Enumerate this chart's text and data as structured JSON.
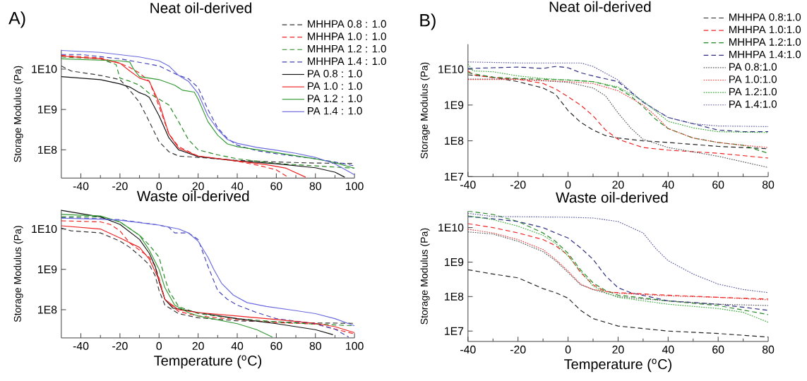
{
  "chart_data": [
    {
      "type": "line",
      "title": "Neat oil-derived",
      "ylabel": "Storage Modulus (Pa)",
      "annotations": [
        "A)"
      ],
      "log": "y",
      "legend": "top right",
      "xlim": [
        -50,
        100
      ],
      "xticks": [
        -40,
        -20,
        0,
        20,
        40,
        60,
        80,
        100
      ],
      "ylim": [
        20000000.0,
        30000000000.0
      ],
      "yticks": [
        {
          "value": 100000000.0,
          "label": "1E8"
        },
        {
          "value": 1000000000.0,
          "label": "1E9"
        },
        {
          "value": 10000000000.0,
          "label": "1E10"
        }
      ],
      "series": [
        {
          "name": "MHHPA 0.8 : 1.0",
          "color": "#333333",
          "line_style": "dashed",
          "x": [
            -50,
            -45,
            -30,
            -20,
            -15,
            -10,
            -5,
            0,
            5,
            10,
            20,
            40,
            60,
            80,
            100
          ],
          "values": [
            12000000000.0,
            9000000000.0,
            7000000000.0,
            5500000000.0,
            3000000000.0,
            1500000000.0,
            500000000.0,
            160000000.0,
            90000000.0,
            70000000.0,
            65000000.0,
            55000000.0,
            50000000.0,
            47000000.0,
            46000000.0
          ]
        },
        {
          "name": "MHHPA 1.0 : 1.0",
          "color": "#ee2222",
          "line_style": "dashed",
          "x": [
            -50,
            -30,
            -20,
            -15,
            -10,
            -5,
            0,
            5,
            10,
            20,
            40,
            50,
            60,
            66
          ],
          "values": [
            22000000000.0,
            19000000000.0,
            14000000000.0,
            11000000000.0,
            8000000000.0,
            5000000000.0,
            1200000000.0,
            250000000.0,
            120000000.0,
            70000000.0,
            52000000.0,
            42000000.0,
            32000000.0,
            21000000.0
          ]
        },
        {
          "name": "MHHPA 1.2 : 1.0",
          "color": "#228822",
          "line_style": "dashed",
          "x": [
            -50,
            -30,
            -22,
            -20,
            -15,
            -10,
            -5,
            5,
            10,
            15,
            20,
            30,
            40,
            60,
            80,
            100
          ],
          "values": [
            20000000000.0,
            18000000000.0,
            13000000000.0,
            6000000000.0,
            5000000000.0,
            4000000000.0,
            2500000000.0,
            1300000000.0,
            500000000.0,
            180000000.0,
            100000000.0,
            75000000.0,
            60000000.0,
            46000000.0,
            40000000.0,
            35000000.0
          ]
        },
        {
          "name": "MHHPA 1.4 : 1.0",
          "color": "#4040b8",
          "line_style": "dashed",
          "x": [
            -50,
            -40,
            -20,
            0,
            10,
            15,
            20,
            25,
            30,
            35,
            40,
            50,
            60,
            80,
            90,
            100
          ],
          "values": [
            23000000000.0,
            23000000000.0,
            18000000000.0,
            12000000000.0,
            7000000000.0,
            5800000000.0,
            3500000000.0,
            1000000000.0,
            350000000.0,
            190000000.0,
            130000000.0,
            95000000.0,
            80000000.0,
            60000000.0,
            50000000.0,
            40000000.0
          ]
        },
        {
          "name": "PA 0.8 : 1.0",
          "color": "#111111",
          "line_style": "solid",
          "x": [
            -50,
            -30,
            -20,
            -15,
            -10,
            -7,
            -5,
            0,
            5,
            10,
            20,
            40,
            60,
            80,
            90,
            95
          ],
          "values": [
            6500000000.0,
            5500000000.0,
            4300000000.0,
            3600000000.0,
            2600000000.0,
            2300000000.0,
            2000000000.0,
            700000000.0,
            200000000.0,
            100000000.0,
            68000000.0,
            53000000.0,
            45000000.0,
            36000000.0,
            28000000.0,
            21000000.0
          ]
        },
        {
          "name": "PA 1.0 : 1.0",
          "color": "#ee2222",
          "line_style": "solid",
          "x": [
            -50,
            -30,
            -20,
            -15,
            -10,
            -5,
            0,
            5,
            10,
            20,
            40,
            55,
            65,
            75
          ],
          "values": [
            21000000000.0,
            18000000000.0,
            14000000000.0,
            9000000000.0,
            6000000000.0,
            5000000000.0,
            1500000000.0,
            250000000.0,
            110000000.0,
            70000000.0,
            53000000.0,
            43000000.0,
            35000000.0,
            21000000.0
          ]
        },
        {
          "name": "PA 1.2 : 1.0",
          "color": "#339933",
          "line_style": "solid",
          "x": [
            -50,
            -20,
            -15,
            -13,
            -10,
            0,
            8,
            12,
            18,
            20,
            25,
            30,
            35,
            40,
            60,
            80,
            90,
            100
          ],
          "values": [
            18000000000.0,
            16000000000.0,
            15000000000.0,
            10000000000.0,
            6500000000.0,
            5500000000.0,
            4000000000.0,
            3000000000.0,
            2700000000.0,
            1800000000.0,
            500000000.0,
            230000000.0,
            140000000.0,
            120000000.0,
            85000000.0,
            60000000.0,
            48000000.0,
            35000000.0
          ]
        },
        {
          "name": "PA 1.4 : 1.0",
          "color": "#6a6ae0",
          "line_style": "solid",
          "x": [
            -50,
            -30,
            -10,
            0,
            5,
            10,
            15,
            20,
            25,
            30,
            35,
            40,
            50,
            60,
            70,
            80,
            90,
            100
          ],
          "values": [
            29000000000.0,
            26000000000.0,
            20000000000.0,
            16000000000.0,
            12000000000.0,
            7000000000.0,
            5000000000.0,
            2500000000.0,
            700000000.0,
            320000000.0,
            180000000.0,
            145000000.0,
            115000000.0,
            98000000.0,
            82000000.0,
            65000000.0,
            45000000.0,
            24000000.0
          ]
        }
      ]
    },
    {
      "type": "line",
      "title": "Waste oil-derived",
      "xlabel": "Temperature ($^{o}$C)",
      "ylabel": "Storage Modulus (Pa)",
      "log": "y",
      "xlim": [
        -50,
        100
      ],
      "xticks": [
        -40,
        -20,
        0,
        20,
        40,
        60,
        80,
        100
      ],
      "ylim": [
        20000000.0,
        30000000000.0
      ],
      "yticks": [
        {
          "value": 100000000.0,
          "label": "1E8"
        },
        {
          "value": 1000000000.0,
          "label": "1E9"
        },
        {
          "value": 10000000000.0,
          "label": "1E10"
        }
      ],
      "series": [
        {
          "color": "#333333",
          "line_style": "dashed",
          "x": [
            -50,
            -45,
            -30,
            -20,
            -15,
            -10,
            -5,
            -2,
            0,
            3,
            10,
            20,
            40,
            60,
            80,
            100
          ],
          "values": [
            10500000000.0,
            9000000000.0,
            8000000000.0,
            5000000000.0,
            3500000000.0,
            2200000000.0,
            1300000000.0,
            700000000.0,
            300000000.0,
            130000000.0,
            80000000.0,
            63000000.0,
            53000000.0,
            50000000.0,
            47000000.0,
            46000000.0
          ]
        },
        {
          "color": "#ee2222",
          "line_style": "dashed",
          "x": [
            -50,
            -30,
            -25,
            -20,
            -15,
            -10,
            -5,
            -2,
            0,
            3,
            10,
            20,
            40,
            60,
            80,
            100
          ],
          "values": [
            16000000000.0,
            15000000000.0,
            13000000000.0,
            9000000000.0,
            4500000000.0,
            3000000000.0,
            2000000000.0,
            1200000000.0,
            600000000.0,
            180000000.0,
            90000000.0,
            70000000.0,
            57000000.0,
            48000000.0,
            44000000.0,
            25000000.0
          ]
        },
        {
          "color": "#228822",
          "line_style": "dashed",
          "x": [
            -50,
            -30,
            -20,
            -10,
            -5,
            0,
            3,
            5,
            10,
            20,
            40,
            60,
            80,
            100
          ],
          "values": [
            20000000000.0,
            20000000000.0,
            15000000000.0,
            7000000000.0,
            4000000000.0,
            2000000000.0,
            600000000.0,
            300000000.0,
            120000000.0,
            80000000.0,
            60000000.0,
            50000000.0,
            44000000.0,
            40000000.0
          ]
        },
        {
          "color": "#4040b8",
          "line_style": "dashed",
          "x": [
            -50,
            -30,
            -20,
            0,
            5,
            8,
            15,
            20,
            25,
            30,
            35,
            40,
            50,
            60,
            80,
            90,
            97
          ],
          "values": [
            19000000000.0,
            18000000000.0,
            17000000000.0,
            12500000000.0,
            11000000000.0,
            8000000000.0,
            8000000000.0,
            5500000000.0,
            1200000000.0,
            300000000.0,
            180000000.0,
            130000000.0,
            85000000.0,
            60000000.0,
            45000000.0,
            33000000.0,
            21000000.0
          ]
        },
        {
          "color": "#111111",
          "line_style": "solid",
          "x": [
            -50,
            -30,
            -20,
            -10,
            -5,
            -2,
            0,
            3,
            7,
            10,
            20,
            40,
            60,
            80,
            89
          ],
          "values": [
            29000000000.0,
            20000000000.0,
            13000000000.0,
            5500000000.0,
            2500000000.0,
            1200000000.0,
            500000000.0,
            180000000.0,
            110000000.0,
            105000000.0,
            85000000.0,
            60000000.0,
            45000000.0,
            32000000.0,
            24000000.0
          ]
        },
        {
          "color": "#ee2222",
          "line_style": "solid",
          "x": [
            -50,
            -30,
            -20,
            -10,
            -5,
            0,
            3,
            10,
            20,
            40,
            60,
            80,
            90,
            100
          ],
          "values": [
            12000000000.0,
            10000000000.0,
            6000000000.0,
            3500000000.0,
            1800000000.0,
            550000000.0,
            180000000.0,
            100000000.0,
            85000000.0,
            70000000.0,
            57000000.0,
            46000000.0,
            38000000.0,
            27000000.0
          ]
        },
        {
          "color": "#339933",
          "line_style": "solid",
          "x": [
            -50,
            -30,
            -20,
            -10,
            -5,
            0,
            3,
            8,
            15,
            20,
            40,
            50,
            58
          ],
          "values": [
            23000000000.0,
            21000000000.0,
            15000000000.0,
            7000000000.0,
            3000000000.0,
            1000000000.0,
            350000000.0,
            130000000.0,
            85000000.0,
            70000000.0,
            45000000.0,
            32000000.0,
            21000000.0
          ]
        },
        {
          "color": "#6a6ae0",
          "line_style": "solid",
          "x": [
            -50,
            -30,
            -20,
            0,
            10,
            15,
            20,
            25,
            28,
            32,
            38,
            45,
            55,
            70,
            80,
            90,
            100
          ],
          "values": [
            18500000000.0,
            17500000000.0,
            16500000000.0,
            12500000000.0,
            10000000000.0,
            8000000000.0,
            5000000000.0,
            2000000000.0,
            1000000000.0,
            450000000.0,
            230000000.0,
            150000000.0,
            120000000.0,
            95000000.0,
            80000000.0,
            60000000.0,
            40000000.0
          ]
        }
      ]
    },
    {
      "type": "line",
      "title": "Neat oil-derived",
      "ylabel": "Storage Modulus (Pa)",
      "annotations": [
        "B)"
      ],
      "log": "y",
      "legend": "top right",
      "xlim": [
        -40,
        80
      ],
      "xticks": [
        -40,
        -20,
        0,
        20,
        40,
        60,
        80
      ],
      "ylim": [
        10000000.0,
        50000000000.0
      ],
      "yticks": [
        {
          "value": 10000000.0,
          "label": "1E7"
        },
        {
          "value": 100000000.0,
          "label": "1E8"
        },
        {
          "value": 1000000000.0,
          "label": "1E9"
        },
        {
          "value": 10000000000.0,
          "label": "1E10"
        }
      ],
      "series": [
        {
          "name": "MHHPA 0.8:1.0",
          "color": "#222222",
          "line_style": "dashed",
          "x": [
            -40,
            -30,
            -20,
            -10,
            -5,
            0,
            5,
            10,
            15,
            20,
            30,
            40,
            60,
            80
          ],
          "values": [
            7000000000.0,
            6000000000.0,
            4500000000.0,
            3000000000.0,
            2000000000.0,
            700000000.0,
            330000000.0,
            200000000.0,
            140000000.0,
            120000000.0,
            100000000.0,
            90000000.0,
            70000000.0,
            60000000.0
          ]
        },
        {
          "name": "MHHPA 1.0:1.0",
          "color": "#ee2222",
          "line_style": "dashed",
          "x": [
            -40,
            -38,
            -30,
            -20,
            -10,
            -5,
            0,
            5,
            10,
            15,
            20,
            30,
            40,
            60,
            80
          ],
          "values": [
            9000000000.0,
            7000000000.0,
            5800000000.0,
            5300000000.0,
            4000000000.0,
            2800000000.0,
            1700000000.0,
            1000000000.0,
            500000000.0,
            200000000.0,
            110000000.0,
            65000000.0,
            55000000.0,
            45000000.0,
            33000000.0
          ]
        },
        {
          "name": "MHHPA 1.2:1.0",
          "color": "#228822",
          "line_style": "dashed",
          "x": [
            -40,
            -30,
            -20,
            0,
            10,
            20,
            25,
            30,
            35,
            40,
            50,
            60,
            70,
            80
          ],
          "values": [
            8000000000.0,
            6000000000.0,
            5500000000.0,
            5000000000.0,
            4500000000.0,
            3000000000.0,
            1800000000.0,
            900000000.0,
            400000000.0,
            220000000.0,
            120000000.0,
            90000000.0,
            75000000.0,
            45000000.0
          ]
        },
        {
          "name": "MHHPA 1.4:1.0",
          "color": "#2b2b80",
          "line_style": "dashed",
          "x": [
            -40,
            -30,
            -20,
            -10,
            -5,
            0,
            5,
            10,
            20,
            30,
            40,
            50,
            60,
            70,
            80
          ],
          "values": [
            10500000000.0,
            11000000000.0,
            11500000000.0,
            10500000000.0,
            12000000000.0,
            11000000000.0,
            8000000000.0,
            6500000000.0,
            4500000000.0,
            1200000000.0,
            450000000.0,
            300000000.0,
            200000000.0,
            180000000.0,
            180000000.0
          ]
        },
        {
          "name": "PA 0.8:1.0",
          "color": "#555555",
          "line_style": "dotted",
          "x": [
            -40,
            -20,
            0,
            10,
            15,
            20,
            25,
            30,
            40,
            60,
            80
          ],
          "values": [
            5300000000.0,
            5300000000.0,
            4300000000.0,
            3000000000.0,
            1800000000.0,
            600000000.0,
            230000000.0,
            110000000.0,
            65000000.0,
            37000000.0,
            18000000.0
          ]
        },
        {
          "name": "PA 1.0:1.0",
          "color": "#ee3333",
          "line_style": "dotted",
          "x": [
            -40,
            -20,
            0,
            10,
            20,
            30,
            35,
            40,
            50,
            60,
            70,
            80
          ],
          "values": [
            5200000000.0,
            5200000000.0,
            4500000000.0,
            4000000000.0,
            2500000000.0,
            1000000000.0,
            500000000.0,
            220000000.0,
            120000000.0,
            90000000.0,
            75000000.0,
            65000000.0
          ]
        },
        {
          "name": "PA 1.2:1.0",
          "color": "#33aa33",
          "line_style": "dotted",
          "x": [
            -40,
            -38,
            -30,
            -20,
            -10,
            0,
            10,
            20,
            30,
            40,
            50,
            60,
            80
          ],
          "values": [
            14000000000.0,
            9000000000.0,
            8500000000.0,
            6500000000.0,
            5500000000.0,
            5000000000.0,
            4500000000.0,
            3200000000.0,
            1300000000.0,
            350000000.0,
            230000000.0,
            180000000.0,
            170000000.0
          ]
        },
        {
          "name": "PA 1.4:1.0",
          "color": "#5a5aa0",
          "line_style": "dotted",
          "x": [
            -40,
            -20,
            0,
            5,
            10,
            20,
            30,
            40,
            50,
            60,
            80
          ],
          "values": [
            16000000000.0,
            15000000000.0,
            15000000000.0,
            15000000000.0,
            12000000000.0,
            5000000000.0,
            1200000000.0,
            450000000.0,
            300000000.0,
            260000000.0,
            250000000.0
          ]
        }
      ]
    },
    {
      "type": "line",
      "title": "Waste oil-derived",
      "xlabel": "Temperature ($^{o}$C)",
      "ylabel": "Storage Modulus (Pa)",
      "log": "y",
      "xlim": [
        -40,
        80
      ],
      "xticks": [
        -40,
        -20,
        0,
        20,
        40,
        60,
        80
      ],
      "ylim": [
        5000000.0,
        30000000000.0
      ],
      "yticks": [
        {
          "value": 10000000.0,
          "label": "1E7"
        },
        {
          "value": 100000000.0,
          "label": "1E8"
        },
        {
          "value": 1000000000.0,
          "label": "1E9"
        },
        {
          "value": 10000000000.0,
          "label": "1E10"
        }
      ],
      "series": [
        {
          "color": "#222222",
          "line_style": "dashed",
          "x": [
            -40,
            -30,
            -20,
            -10,
            -5,
            0,
            5,
            10,
            20,
            40,
            60,
            80
          ],
          "values": [
            600000000.0,
            450000000.0,
            350000000.0,
            170000000.0,
            130000000.0,
            90000000.0,
            40000000.0,
            23000000.0,
            14000000.0,
            10000000.0,
            8500000.0,
            6700000.0
          ]
        },
        {
          "color": "#ee2222",
          "line_style": "dashed",
          "x": [
            -40,
            -30,
            -20,
            -10,
            -5,
            0,
            5,
            10,
            15,
            20,
            40,
            60,
            80
          ],
          "values": [
            13000000000.0,
            10000000000.0,
            7000000000.0,
            4500000000.0,
            3000000000.0,
            1600000000.0,
            500000000.0,
            220000000.0,
            140000000.0,
            130000000.0,
            110000000.0,
            95000000.0,
            85000000.0
          ]
        },
        {
          "color": "#228822",
          "line_style": "dashed",
          "x": [
            -40,
            -30,
            -20,
            -10,
            -5,
            0,
            5,
            10,
            15,
            20,
            40,
            60,
            80
          ],
          "values": [
            30000000000.0,
            24000000000.0,
            15000000000.0,
            7000000000.0,
            4000000000.0,
            1800000000.0,
            600000000.0,
            250000000.0,
            150000000.0,
            110000000.0,
            75000000.0,
            55000000.0,
            30000000.0
          ]
        },
        {
          "color": "#2b2b80",
          "line_style": "dashed",
          "x": [
            -40,
            -30,
            -20,
            -10,
            -5,
            0,
            5,
            10,
            15,
            20,
            25,
            40,
            60,
            80
          ],
          "values": [
            21000000000.0,
            18000000000.0,
            15000000000.0,
            10000000000.0,
            7000000000.0,
            5000000000.0,
            2600000000.0,
            1200000000.0,
            400000000.0,
            180000000.0,
            130000000.0,
            75000000.0,
            60000000.0,
            40000000.0
          ]
        },
        {
          "color": "#555555",
          "line_style": "dotted",
          "x": [
            -40,
            -30,
            -20,
            -10,
            -5,
            0,
            5,
            10,
            20,
            30,
            40,
            60,
            80
          ],
          "values": [
            7500000000.0,
            6500000000.0,
            4000000000.0,
            2000000000.0,
            1100000000.0,
            500000000.0,
            220000000.0,
            160000000.0,
            100000000.0,
            85000000.0,
            75000000.0,
            60000000.0,
            55000000.0
          ]
        },
        {
          "color": "#ee3333",
          "line_style": "dotted",
          "x": [
            -40,
            -30,
            -20,
            -10,
            -5,
            0,
            5,
            10,
            20,
            40,
            60,
            80
          ],
          "values": [
            9000000000.0,
            7000000000.0,
            4500000000.0,
            2300000000.0,
            1200000000.0,
            550000000.0,
            230000000.0,
            160000000.0,
            125000000.0,
            105000000.0,
            95000000.0,
            80000000.0
          ]
        },
        {
          "color": "#33aa33",
          "line_style": "dotted",
          "x": [
            -40,
            -30,
            -20,
            -10,
            -5,
            0,
            5,
            10,
            15,
            20,
            40,
            60,
            70,
            80
          ],
          "values": [
            22000000000.0,
            17000000000.0,
            11000000000.0,
            6000000000.0,
            3500000000.0,
            1500000000.0,
            550000000.0,
            200000000.0,
            130000000.0,
            95000000.0,
            60000000.0,
            45000000.0,
            35000000.0,
            18000000.0
          ]
        },
        {
          "color": "#5a5aa0",
          "line_style": "dotted",
          "x": [
            -40,
            -30,
            0,
            10,
            20,
            30,
            35,
            40,
            50,
            60,
            70,
            80
          ],
          "values": [
            26000000000.0,
            21000000000.0,
            20000000000.0,
            19000000000.0,
            15000000000.0,
            7000000000.0,
            2500000000.0,
            1100000000.0,
            450000000.0,
            230000000.0,
            160000000.0,
            130000000.0
          ]
        }
      ]
    }
  ]
}
